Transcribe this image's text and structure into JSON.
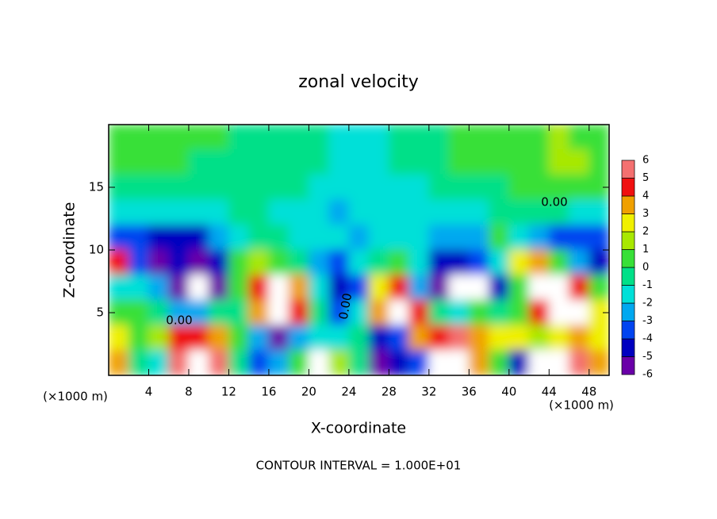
{
  "chart_data": {
    "type": "contour",
    "title": "zonal velocity",
    "x_label": "X-coordinate",
    "y_label": "Z-coordinate",
    "x_unit": "(×1000 m)",
    "footer": "CONTOUR INTERVAL = 1.000E+01",
    "contour_labels": [
      "0.00",
      "0.00",
      "0.00"
    ],
    "xlim": [
      0,
      50
    ],
    "ylim": [
      0,
      20
    ],
    "xticks": [
      4,
      8,
      12,
      16,
      20,
      24,
      28,
      32,
      36,
      40,
      44,
      48
    ],
    "yticks": [
      5,
      10,
      15
    ],
    "x": [
      1,
      3,
      5,
      7,
      9,
      11,
      13,
      15,
      17,
      19,
      21,
      23,
      25,
      27,
      29,
      31,
      33,
      35,
      37,
      39,
      41,
      43,
      45,
      47,
      49
    ],
    "z": [
      19,
      17,
      15,
      13,
      11,
      9,
      7,
      5,
      3,
      1
    ],
    "values": [
      [
        0.5,
        0.5,
        0.5,
        0.5,
        0.5,
        0.5,
        0,
        0,
        -0.5,
        -0.5,
        -0.5,
        -1,
        -1,
        -1,
        -0.5,
        -0.5,
        0,
        0.5,
        0.5,
        0.5,
        1,
        1,
        1.5,
        1,
        0.5
      ],
      [
        0.5,
        0.5,
        0.5,
        0.5,
        0,
        0,
        0,
        -0.5,
        -0.5,
        -0.5,
        -0.5,
        -1,
        -1.5,
        -1,
        -0.5,
        -0.5,
        -0.5,
        0.5,
        0.5,
        0.5,
        1,
        1,
        1.5,
        1.5,
        1
      ],
      [
        0,
        0,
        -0.5,
        -0.5,
        -0.5,
        -0.5,
        -0.5,
        -0.5,
        -0.5,
        -0.5,
        -1,
        -1,
        -1.5,
        -1.5,
        -1,
        -1,
        -0.5,
        -0.5,
        -0.5,
        -0.5,
        0.5,
        0.5,
        0.5,
        0.5,
        0.5
      ],
      [
        -1,
        -1.5,
        -1.5,
        -1,
        -1,
        -1,
        -0.5,
        -0.5,
        -1,
        -1,
        -1.5,
        -2,
        -1.5,
        -1.5,
        -1,
        -1,
        -1,
        -1,
        -1.5,
        -0.5,
        -0.5,
        -0.5,
        -0.5,
        -1,
        -1
      ],
      [
        -3,
        -3.5,
        -4,
        -4.5,
        -4,
        -2.5,
        -1,
        -0.5,
        -0.5,
        -1,
        -1,
        -1,
        -2,
        -1.5,
        -1,
        -1.5,
        -2,
        -2,
        -2.5,
        0.5,
        -1,
        -2,
        -3,
        -3.5,
        -3
      ],
      [
        5,
        -3,
        -5,
        -4,
        -5,
        -4,
        0.5,
        2,
        1,
        -0.5,
        -2,
        -3,
        -1.5,
        -0.5,
        1,
        -1,
        -4,
        -4,
        -3,
        -1,
        3,
        4,
        1,
        -2,
        -4
      ],
      [
        -1,
        -1,
        -2,
        -5,
        8,
        -5,
        0.5,
        5,
        8,
        4,
        -1,
        -4,
        -3,
        3,
        5,
        -2,
        -5,
        8,
        8,
        -4,
        1,
        8,
        8,
        5,
        0.5
      ],
      [
        0.5,
        0.5,
        -0.5,
        -2,
        -2,
        -0.5,
        0,
        4,
        8,
        5,
        0,
        -3,
        -1,
        4,
        8,
        5,
        0,
        -1,
        1,
        0,
        0.5,
        5,
        8,
        7,
        3
      ],
      [
        3,
        0.5,
        2,
        5,
        5,
        4,
        1,
        -2,
        -5,
        -2,
        -1,
        -1,
        0,
        -4,
        -3,
        4,
        5,
        6,
        4,
        3,
        3,
        2,
        3,
        4,
        3
      ],
      [
        4,
        0,
        -1,
        6,
        8,
        6,
        0,
        -3,
        -2,
        0.5,
        7,
        2,
        0,
        -6,
        -4,
        -3,
        8,
        8,
        4,
        1,
        -4,
        8,
        8,
        6,
        4
      ]
    ],
    "colorbar": {
      "ticks": [
        -6,
        -5,
        -4,
        -3,
        -2,
        -1,
        0,
        1,
        2,
        3,
        4,
        5,
        6
      ],
      "colors": [
        "#6a00a8",
        "#0000c0",
        "#0044f0",
        "#00a8f0",
        "#00e0d8",
        "#00e088",
        "#38e038",
        "#a8e800",
        "#f0f000",
        "#f0a000",
        "#f01010",
        "#f47070"
      ],
      "out_of_range_color": "#ffffff"
    }
  }
}
